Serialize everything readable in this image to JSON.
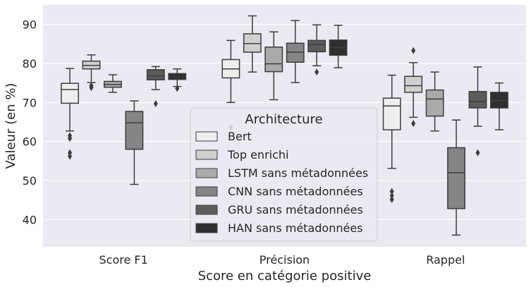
{
  "chart_data": {
    "type": "boxplot",
    "xlabel": "Score en catégorie positive",
    "ylabel": "Valeur (en %)",
    "ylim": [
      33,
      95
    ],
    "yticks": [
      40,
      50,
      60,
      70,
      80,
      90
    ],
    "grid": true,
    "categories": [
      "Score F1",
      "Précision",
      "Rappel"
    ],
    "legend": {
      "title": "Architecture",
      "placement": "center",
      "entries": [
        "Bert",
        "Top enrichi",
        "LSTM sans métadonnées",
        "CNN sans métadonnées",
        "GRU sans métadonnées",
        "HAN sans métadonnées"
      ]
    },
    "colors": [
      "#eeeeee",
      "#d0d0d0",
      "#aaaaaa",
      "#858585",
      "#5c5c5c",
      "#2f2f2f"
    ],
    "series": [
      {
        "name": "Bert",
        "boxes": [
          {
            "whislo": 62.7,
            "q1": 69.8,
            "med": 73.3,
            "q3": 74.9,
            "whishi": 78.7,
            "fliers": [
              61.5,
              60.8,
              57.1,
              56.2
            ]
          },
          {
            "whislo": 70.0,
            "q1": 76.3,
            "med": 78.6,
            "q3": 81.0,
            "whishi": 85.9,
            "fliers": [
              63.6
            ]
          },
          {
            "whislo": 53.1,
            "q1": 63.0,
            "med": 69.1,
            "q3": 71.1,
            "whishi": 77.0,
            "fliers": [
              47.2,
              46.1,
              45.1
            ]
          }
        ]
      },
      {
        "name": "Top enrichi",
        "boxes": [
          {
            "whislo": 75.1,
            "q1": 78.6,
            "med": 79.5,
            "q3": 80.6,
            "whishi": 82.2,
            "fliers": [
              74.3,
              73.8
            ]
          },
          {
            "whislo": 77.8,
            "q1": 82.9,
            "med": 85.1,
            "q3": 87.6,
            "whishi": 92.2,
            "fliers": []
          },
          {
            "whislo": 66.2,
            "q1": 72.6,
            "med": 74.3,
            "q3": 76.7,
            "whishi": 80.2,
            "fliers": [
              83.3,
              64.6
            ]
          }
        ]
      },
      {
        "name": "LSTM sans métadonnées",
        "boxes": [
          {
            "whislo": 72.6,
            "q1": 73.9,
            "med": 74.6,
            "q3": 75.4,
            "whishi": 77.1,
            "fliers": []
          },
          {
            "whislo": 70.7,
            "q1": 77.9,
            "med": 79.9,
            "q3": 84.2,
            "whishi": 88.1,
            "fliers": []
          },
          {
            "whislo": 62.7,
            "q1": 66.5,
            "med": 70.9,
            "q3": 73.2,
            "whishi": 77.8,
            "fliers": []
          }
        ]
      },
      {
        "name": "CNN sans métadonnées",
        "boxes": [
          {
            "whislo": 49.0,
            "q1": 58.0,
            "med": 64.8,
            "q3": 67.7,
            "whishi": 70.4,
            "fliers": []
          },
          {
            "whislo": 75.1,
            "q1": 80.3,
            "med": 82.9,
            "q3": 85.2,
            "whishi": 91.0,
            "fliers": []
          },
          {
            "whislo": 36.0,
            "q1": 42.8,
            "med": 52.0,
            "q3": 58.4,
            "whishi": 65.5,
            "fliers": []
          }
        ]
      },
      {
        "name": "GRU sans métadonnées",
        "boxes": [
          {
            "whislo": 73.3,
            "q1": 75.8,
            "med": 76.8,
            "q3": 78.4,
            "whishi": 79.2,
            "fliers": [
              69.7
            ]
          },
          {
            "whislo": 79.4,
            "q1": 83.0,
            "med": 84.9,
            "q3": 85.9,
            "whishi": 89.9,
            "fliers": [
              77.8
            ]
          },
          {
            "whislo": 63.9,
            "q1": 68.6,
            "med": 70.2,
            "q3": 72.8,
            "whishi": 79.1,
            "fliers": [
              57.1
            ]
          }
        ]
      },
      {
        "name": "HAN sans métadonnées",
        "boxes": [
          {
            "whislo": 74.1,
            "q1": 75.9,
            "med": 76.6,
            "q3": 77.4,
            "whishi": 78.6,
            "fliers": [
              73.6
            ]
          },
          {
            "whislo": 78.9,
            "q1": 82.1,
            "med": 84.1,
            "q3": 86.0,
            "whishi": 89.8,
            "fliers": []
          },
          {
            "whislo": 63.0,
            "q1": 68.6,
            "med": 70.5,
            "q3": 72.6,
            "whishi": 75.0,
            "fliers": []
          }
        ]
      }
    ]
  }
}
